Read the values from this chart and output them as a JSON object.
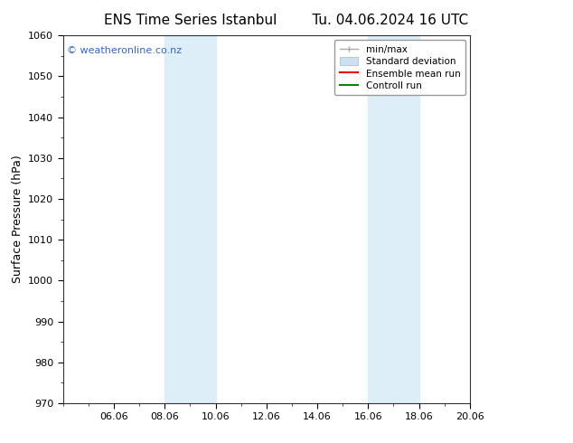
{
  "title_left": "ENS Time Series Istanbul",
  "title_right": "Tu. 04.06.2024 16 UTC",
  "ylabel": "Surface Pressure (hPa)",
  "ylim": [
    970,
    1060
  ],
  "yticks": [
    970,
    980,
    990,
    1000,
    1010,
    1020,
    1030,
    1040,
    1050,
    1060
  ],
  "xlim": [
    4,
    20
  ],
  "xtick_labels": [
    "06.06",
    "08.06",
    "10.06",
    "12.06",
    "14.06",
    "16.06",
    "18.06",
    "20.06"
  ],
  "xtick_positions": [
    6,
    8,
    10,
    12,
    14,
    16,
    18,
    20
  ],
  "shade_bands": [
    {
      "x_start": 8,
      "x_end": 10,
      "color": "#ddeef8"
    },
    {
      "x_start": 16,
      "x_end": 18,
      "color": "#ddeef8"
    }
  ],
  "background_color": "#ffffff",
  "plot_bg_color": "#ffffff",
  "watermark_text": "© weatheronline.co.nz",
  "watermark_color": "#3366cc",
  "minmax_color": "#aaaaaa",
  "std_color": "#cce0f0",
  "ens_color": "#ff0000",
  "ctrl_color": "#008800",
  "font_family": "DejaVu Sans",
  "title_fontsize": 11,
  "ylabel_fontsize": 9,
  "tick_fontsize": 8,
  "watermark_fontsize": 8,
  "legend_fontsize": 7.5
}
